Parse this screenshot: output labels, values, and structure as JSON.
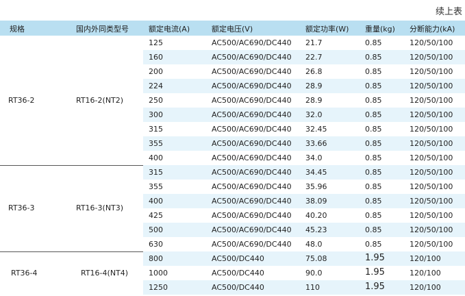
{
  "continued_label": "续上表",
  "columns": [
    "规格",
    "国内外同类型号",
    "额定电流(A)",
    "额定电压(V)",
    "额定功率(W)",
    "重量(kg)",
    "分断能力(kA)"
  ],
  "groups": [
    {
      "spec": "RT36-2",
      "model": "RT16-2(NT2)",
      "rows": [
        [
          "125",
          "AC500/AC690/DC440",
          "21.7",
          "0.85",
          "120/50/100"
        ],
        [
          "160",
          "AC500/AC690/DC440",
          "22.7",
          "0.85",
          "120/50/100"
        ],
        [
          "200",
          "AC500/AC690/DC440",
          "26.8",
          "0.85",
          "120/50/100"
        ],
        [
          "224",
          "AC500/AC690/DC440",
          "28.9",
          "0.85",
          "120/50/100"
        ],
        [
          "250",
          "AC500/AC690/DC440",
          "28.9",
          "0.85",
          "120/50/100"
        ],
        [
          "300",
          "AC500/AC690/DC440",
          "32.0",
          "0.85",
          "120/50/100"
        ],
        [
          "315",
          "AC500/AC690/DC440",
          "32.45",
          "0.85",
          "120/50/100"
        ],
        [
          "355",
          "AC500/AC690/DC440",
          "33.66",
          "0.85",
          "120/50/100"
        ],
        [
          "400",
          "AC500/AC690/DC440",
          "34.0",
          "0.85",
          "120/50/100"
        ]
      ]
    },
    {
      "spec": "RT36-3",
      "model": "RT16-3(NT3)",
      "rows": [
        [
          "315",
          "AC500/AC690/DC440",
          "34.45",
          "0.85",
          "120/50/100"
        ],
        [
          "355",
          "AC500/AC690/DC440",
          "35.96",
          "0.85",
          "120/50/100"
        ],
        [
          "400",
          "AC500/AC690/DC440",
          "38.09",
          "0.85",
          "120/50/100"
        ],
        [
          "425",
          "AC500/AC690/DC440",
          "40.20",
          "0.85",
          "120/50/100"
        ],
        [
          "500",
          "AC500/AC690/DC440",
          "45.23",
          "0.85",
          "120/50/100"
        ],
        [
          "630",
          "AC500/AC690/DC440",
          "48.0",
          "0.85",
          "120/50/100"
        ]
      ]
    },
    {
      "spec": "RT36-4",
      "model": "RT16-4(NT4)",
      "rows": [
        [
          "800",
          "AC500/DC440",
          "75.08",
          "1.95",
          "120/100"
        ],
        [
          "1000",
          "AC500/DC440",
          "90.0",
          "1.95",
          "120/100"
        ],
        [
          "1250",
          "AC500/DC440",
          "110",
          "1.95",
          "120/100"
        ]
      ]
    }
  ],
  "colors": {
    "header_bg": "#b9dff1",
    "band_bg": "#e6f4fb",
    "rule": "#555555"
  }
}
